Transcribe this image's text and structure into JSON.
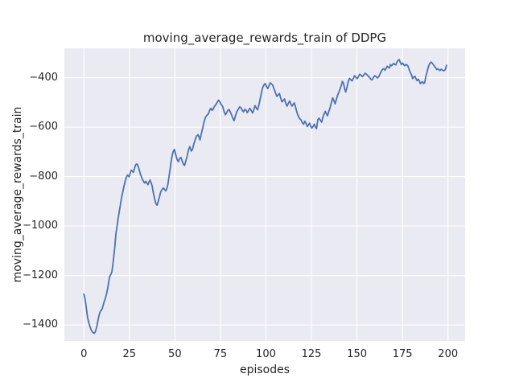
{
  "chart_data": {
    "type": "line",
    "title": "moving_average_rewards_train of DDPG",
    "xlabel": "episodes",
    "ylabel": "moving_average_rewards_train",
    "x_ticks": [
      0,
      25,
      50,
      75,
      100,
      125,
      150,
      175,
      200
    ],
    "y_ticks": [
      -400,
      -600,
      -800,
      -1000,
      -1200,
      -1400
    ],
    "xlim": [
      -10.7,
      209.4
    ],
    "ylim": [
      -1465,
      -281
    ],
    "grid": true,
    "legend_position": "none",
    "style": {
      "line_color": "#4C72B0",
      "line_width": 1.8,
      "plot_bg": "#EAEAF2",
      "grid_color": "#FFFFFF",
      "text_color": "#262626",
      "fig_bg": "#FFFFFF"
    },
    "series": [
      {
        "name": "moving_average_rewards_train",
        "points": [
          [
            0,
            -1276
          ],
          [
            0.5,
            -1290
          ],
          [
            1,
            -1312
          ],
          [
            1.5,
            -1340
          ],
          [
            2,
            -1368
          ],
          [
            2.5,
            -1385
          ],
          [
            3,
            -1398
          ],
          [
            3.5,
            -1410
          ],
          [
            4,
            -1420
          ],
          [
            4.5,
            -1426
          ],
          [
            5,
            -1431
          ],
          [
            5.7,
            -1434
          ],
          [
            6.3,
            -1428
          ],
          [
            7,
            -1410
          ],
          [
            7.5,
            -1392
          ],
          [
            8,
            -1372
          ],
          [
            8.7,
            -1352
          ],
          [
            9.2,
            -1343
          ],
          [
            9.7,
            -1340
          ],
          [
            10.2,
            -1332
          ],
          [
            10.7,
            -1318
          ],
          [
            11.2,
            -1305
          ],
          [
            12,
            -1288
          ],
          [
            12.6,
            -1270
          ],
          [
            13.2,
            -1248
          ],
          [
            13.7,
            -1222
          ],
          [
            14.2,
            -1205
          ],
          [
            14.8,
            -1196
          ],
          [
            15.4,
            -1185
          ],
          [
            16,
            -1152
          ],
          [
            16.5,
            -1118
          ],
          [
            17,
            -1085
          ],
          [
            17.6,
            -1032
          ],
          [
            18.1,
            -1008
          ],
          [
            18.7,
            -976
          ],
          [
            19.3,
            -948
          ],
          [
            20,
            -918
          ],
          [
            20.6,
            -890
          ],
          [
            21.2,
            -868
          ],
          [
            22,
            -840
          ],
          [
            22.8,
            -816
          ],
          [
            23.5,
            -800
          ],
          [
            24,
            -794
          ],
          [
            24.4,
            -797
          ],
          [
            24.8,
            -801
          ],
          [
            25.3,
            -790
          ],
          [
            26,
            -774
          ],
          [
            26.6,
            -778
          ],
          [
            27.2,
            -783
          ],
          [
            28,
            -762
          ],
          [
            28.6,
            -751
          ],
          [
            29.2,
            -749
          ],
          [
            29.8,
            -758
          ],
          [
            30.5,
            -775
          ],
          [
            31.2,
            -793
          ],
          [
            32,
            -808
          ],
          [
            32.8,
            -820
          ],
          [
            33.4,
            -826
          ],
          [
            34,
            -819
          ],
          [
            34.6,
            -826
          ],
          [
            35.2,
            -833
          ],
          [
            35.8,
            -822
          ],
          [
            36.3,
            -814
          ],
          [
            36.9,
            -824
          ],
          [
            37.5,
            -838
          ],
          [
            38.2,
            -868
          ],
          [
            39,
            -894
          ],
          [
            39.6,
            -910
          ],
          [
            40.2,
            -916
          ],
          [
            40.8,
            -902
          ],
          [
            41.5,
            -883
          ],
          [
            42.2,
            -862
          ],
          [
            43,
            -852
          ],
          [
            43.7,
            -846
          ],
          [
            44.3,
            -852
          ],
          [
            45,
            -858
          ],
          [
            45.6,
            -848
          ],
          [
            46.2,
            -830
          ],
          [
            46.8,
            -798
          ],
          [
            47.5,
            -764
          ],
          [
            48.2,
            -726
          ],
          [
            49,
            -700
          ],
          [
            49.7,
            -690
          ],
          [
            50.4,
            -710
          ],
          [
            51.2,
            -731
          ],
          [
            51.9,
            -740
          ],
          [
            52.6,
            -726
          ],
          [
            53.4,
            -723
          ],
          [
            54.1,
            -740
          ],
          [
            54.8,
            -751
          ],
          [
            55.3,
            -755
          ],
          [
            56,
            -737
          ],
          [
            56.8,
            -715
          ],
          [
            57.5,
            -692
          ],
          [
            58.2,
            -679
          ],
          [
            59,
            -697
          ],
          [
            59.7,
            -690
          ],
          [
            60.4,
            -668
          ],
          [
            61.2,
            -650
          ],
          [
            61.9,
            -636
          ],
          [
            62.7,
            -631
          ],
          [
            63.3,
            -640
          ],
          [
            63.8,
            -652
          ],
          [
            64.4,
            -630
          ],
          [
            65.2,
            -606
          ],
          [
            66,
            -580
          ],
          [
            66.8,
            -560
          ],
          [
            67.6,
            -552
          ],
          [
            68.4,
            -546
          ],
          [
            69.2,
            -530
          ],
          [
            69.8,
            -524
          ],
          [
            70.4,
            -532
          ],
          [
            71,
            -528
          ],
          [
            71.7,
            -516
          ],
          [
            72.4,
            -510
          ],
          [
            73.2,
            -500
          ],
          [
            74,
            -491
          ],
          [
            74.7,
            -498
          ],
          [
            75.4,
            -508
          ],
          [
            76.2,
            -516
          ],
          [
            77,
            -536
          ],
          [
            77.7,
            -550
          ],
          [
            78.4,
            -542
          ],
          [
            79.1,
            -532
          ],
          [
            79.8,
            -529
          ],
          [
            80.5,
            -540
          ],
          [
            81.2,
            -552
          ],
          [
            81.9,
            -566
          ],
          [
            82.5,
            -574
          ],
          [
            83.2,
            -556
          ],
          [
            84,
            -538
          ],
          [
            84.8,
            -528
          ],
          [
            85.6,
            -518
          ],
          [
            86.3,
            -522
          ],
          [
            87,
            -532
          ],
          [
            87.7,
            -538
          ],
          [
            88.4,
            -528
          ],
          [
            89.1,
            -532
          ],
          [
            89.8,
            -542
          ],
          [
            90.5,
            -532
          ],
          [
            91.2,
            -524
          ],
          [
            92,
            -534
          ],
          [
            92.7,
            -543
          ],
          [
            93.4,
            -528
          ],
          [
            94,
            -513
          ],
          [
            94.7,
            -522
          ],
          [
            95.4,
            -530
          ],
          [
            96.1,
            -512
          ],
          [
            96.8,
            -488
          ],
          [
            97.5,
            -462
          ],
          [
            98.2,
            -440
          ],
          [
            99,
            -428
          ],
          [
            99.6,
            -424
          ],
          [
            100.3,
            -436
          ],
          [
            101,
            -444
          ],
          [
            101.7,
            -432
          ],
          [
            102.4,
            -421
          ],
          [
            103,
            -425
          ],
          [
            103.7,
            -430
          ],
          [
            104.5,
            -446
          ],
          [
            105.3,
            -462
          ],
          [
            106,
            -476
          ],
          [
            106.7,
            -470
          ],
          [
            107.4,
            -464
          ],
          [
            108.1,
            -482
          ],
          [
            108.8,
            -498
          ],
          [
            109.5,
            -492
          ],
          [
            110.2,
            -486
          ],
          [
            111,
            -506
          ],
          [
            111.6,
            -515
          ],
          [
            112.3,
            -504
          ],
          [
            113,
            -494
          ],
          [
            113.7,
            -506
          ],
          [
            114.3,
            -515
          ],
          [
            115,
            -508
          ],
          [
            115.6,
            -502
          ],
          [
            116.3,
            -520
          ],
          [
            117,
            -540
          ],
          [
            117.8,
            -556
          ],
          [
            118.6,
            -566
          ],
          [
            119.4,
            -572
          ],
          [
            120,
            -582
          ],
          [
            120.7,
            -588
          ],
          [
            121.4,
            -576
          ],
          [
            122,
            -584
          ],
          [
            122.7,
            -598
          ],
          [
            123.4,
            -590
          ],
          [
            124,
            -584
          ],
          [
            124.6,
            -596
          ],
          [
            125.2,
            -604
          ],
          [
            126,
            -596
          ],
          [
            126.6,
            -588
          ],
          [
            127.2,
            -600
          ],
          [
            127.8,
            -606
          ],
          [
            128.5,
            -570
          ],
          [
            129.2,
            -564
          ],
          [
            129.9,
            -572
          ],
          [
            130.6,
            -580
          ],
          [
            131.3,
            -560
          ],
          [
            132,
            -546
          ],
          [
            132.6,
            -536
          ],
          [
            133.2,
            -546
          ],
          [
            133.8,
            -554
          ],
          [
            134.5,
            -538
          ],
          [
            135.2,
            -522
          ],
          [
            136,
            -500
          ],
          [
            136.7,
            -482
          ],
          [
            137.4,
            -494
          ],
          [
            138,
            -506
          ],
          [
            138.7,
            -488
          ],
          [
            139.4,
            -470
          ],
          [
            140,
            -460
          ],
          [
            140.7,
            -446
          ],
          [
            141.4,
            -432
          ],
          [
            142,
            -415
          ],
          [
            142.6,
            -422
          ],
          [
            143.2,
            -444
          ],
          [
            143.8,
            -458
          ],
          [
            144.5,
            -440
          ],
          [
            145.2,
            -416
          ],
          [
            145.9,
            -403
          ],
          [
            146.6,
            -408
          ],
          [
            147.3,
            -413
          ],
          [
            148,
            -404
          ],
          [
            148.7,
            -392
          ],
          [
            149.4,
            -398
          ],
          [
            150.1,
            -404
          ],
          [
            150.8,
            -396
          ],
          [
            151.5,
            -386
          ],
          [
            152.2,
            -390
          ],
          [
            153,
            -396
          ],
          [
            153.7,
            -390
          ],
          [
            154.5,
            -382
          ],
          [
            155.2,
            -386
          ],
          [
            156,
            -392
          ],
          [
            156.8,
            -398
          ],
          [
            157.6,
            -406
          ],
          [
            158.3,
            -409
          ],
          [
            159,
            -400
          ],
          [
            159.8,
            -392
          ],
          [
            160.5,
            -396
          ],
          [
            161.2,
            -401
          ],
          [
            162,
            -396
          ],
          [
            162.7,
            -384
          ],
          [
            163.4,
            -374
          ],
          [
            164.1,
            -366
          ],
          [
            164.8,
            -364
          ],
          [
            165.4,
            -370
          ],
          [
            166,
            -362
          ],
          [
            166.6,
            -354
          ],
          [
            167.2,
            -358
          ],
          [
            167.8,
            -361
          ],
          [
            168.4,
            -347
          ],
          [
            169,
            -352
          ],
          [
            169.6,
            -347
          ],
          [
            170.2,
            -342
          ],
          [
            170.8,
            -347
          ],
          [
            171.4,
            -348
          ],
          [
            172,
            -336
          ],
          [
            172.6,
            -330
          ],
          [
            173.2,
            -327
          ],
          [
            173.8,
            -338
          ],
          [
            174.4,
            -347
          ],
          [
            175,
            -341
          ],
          [
            175.6,
            -346
          ],
          [
            176.2,
            -352
          ],
          [
            176.8,
            -347
          ],
          [
            177.4,
            -348
          ],
          [
            178,
            -353
          ],
          [
            178.7,
            -368
          ],
          [
            179.4,
            -380
          ],
          [
            180,
            -390
          ],
          [
            180.6,
            -404
          ],
          [
            181.2,
            -398
          ],
          [
            181.8,
            -394
          ],
          [
            182.4,
            -404
          ],
          [
            183,
            -412
          ],
          [
            183.6,
            -406
          ],
          [
            184.2,
            -412
          ],
          [
            184.8,
            -424
          ],
          [
            185.4,
            -420
          ],
          [
            186,
            -416
          ],
          [
            186.6,
            -424
          ],
          [
            187.2,
            -420
          ],
          [
            187.8,
            -396
          ],
          [
            188.4,
            -380
          ],
          [
            189,
            -362
          ],
          [
            189.6,
            -348
          ],
          [
            190.2,
            -340
          ],
          [
            190.8,
            -337
          ],
          [
            191.4,
            -342
          ],
          [
            192,
            -348
          ],
          [
            192.6,
            -354
          ],
          [
            193.2,
            -360
          ],
          [
            193.8,
            -367
          ],
          [
            194.4,
            -364
          ],
          [
            195,
            -368
          ],
          [
            195.6,
            -371
          ],
          [
            196.2,
            -366
          ],
          [
            196.8,
            -368
          ],
          [
            197.4,
            -372
          ],
          [
            198,
            -371
          ],
          [
            198.6,
            -366
          ],
          [
            199.2,
            -350
          ]
        ]
      }
    ]
  }
}
